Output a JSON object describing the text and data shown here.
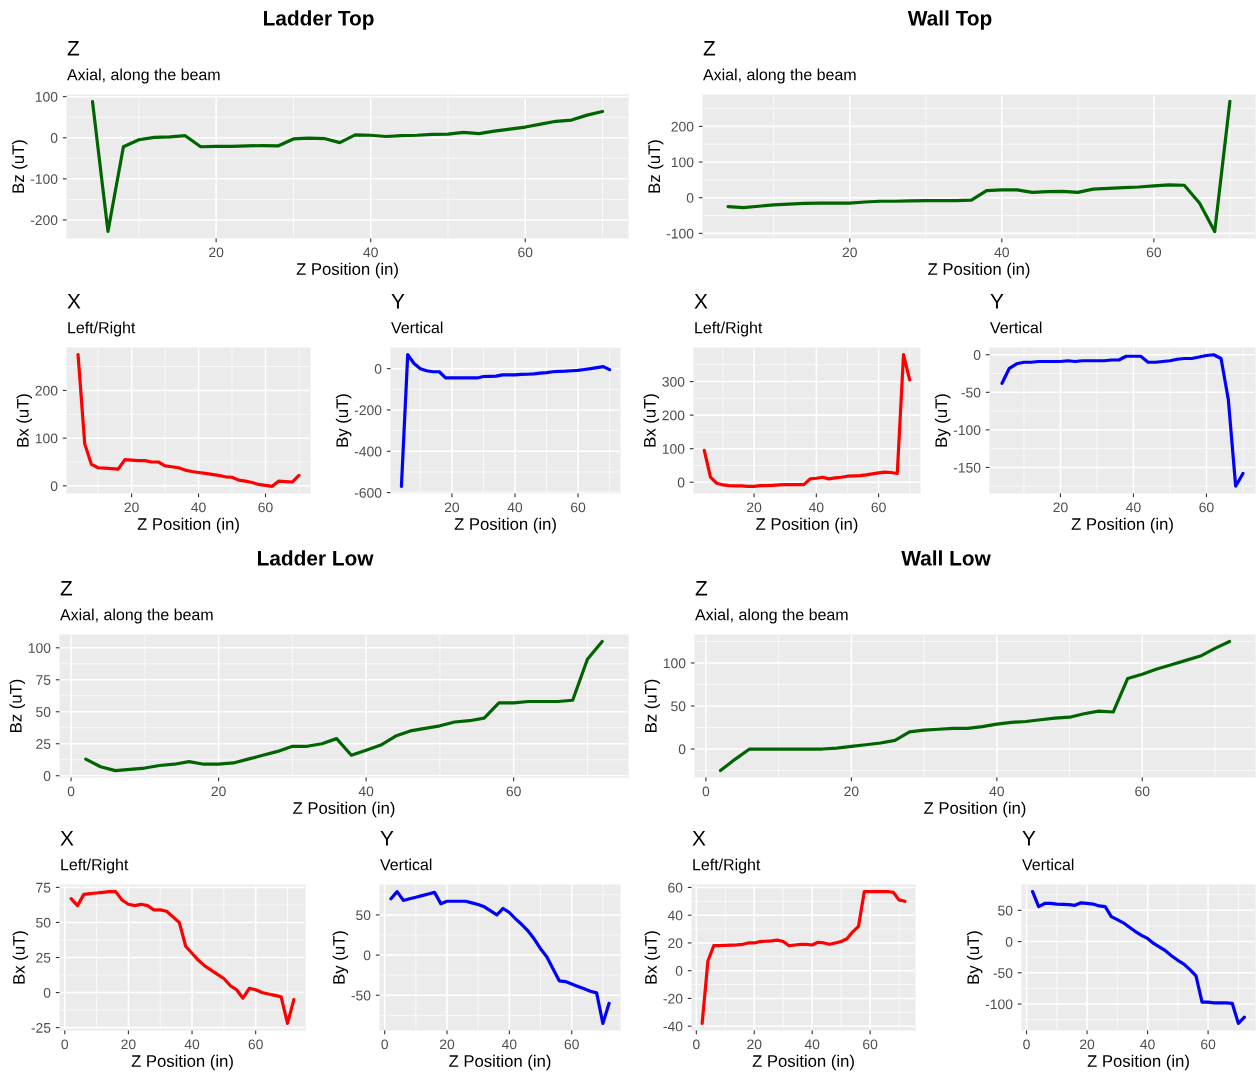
{
  "chart_data": [
    {
      "type": "line",
      "title": "Z",
      "subtitle": "Axial, along the beam",
      "annotations": [
        "Ladder Top"
      ],
      "xlabel": "Z Position (in)",
      "ylabel": "Bz (uT)",
      "xlim": [
        0.7,
        73.3
      ],
      "xticks": [
        20,
        40,
        60
      ],
      "ylim": [
        -244,
        104
      ],
      "yticks": [
        -200,
        -100,
        0,
        100
      ],
      "grid": true,
      "series": [
        {
          "color": "#006400",
          "x": [
            4,
            6,
            8,
            10,
            12,
            14,
            16,
            18,
            20,
            22,
            24,
            26,
            28,
            30,
            32,
            34,
            36,
            38,
            40,
            42,
            44,
            46,
            48,
            50,
            52,
            54,
            56,
            58,
            60,
            62,
            64,
            66,
            68,
            70
          ],
          "values": [
            88,
            -228,
            -22,
            -5,
            1,
            2,
            5,
            -22,
            -21,
            -21,
            -20,
            -19,
            -20,
            -3,
            -1,
            -2,
            -12,
            7,
            6,
            3,
            5,
            6,
            8,
            9,
            13,
            10,
            16,
            21,
            26,
            33,
            40,
            43,
            55,
            64
          ]
        }
      ]
    },
    {
      "type": "line",
      "title": "X",
      "subtitle": "Left/Right",
      "xlabel": "Z Position (in)",
      "ylabel": "Bx (uT)",
      "xlim": [
        0.7,
        73.3
      ],
      "xticks": [
        20,
        40,
        60
      ],
      "ylim": [
        -15,
        289
      ],
      "yticks": [
        0,
        100,
        200
      ],
      "grid": true,
      "series": [
        {
          "color": "#ff0000",
          "x": [
            4,
            6,
            8,
            10,
            12,
            14,
            16,
            18,
            20,
            22,
            24,
            26,
            28,
            30,
            32,
            34,
            36,
            38,
            40,
            42,
            44,
            46,
            48,
            50,
            52,
            54,
            56,
            58,
            60,
            62,
            64,
            66,
            68,
            70
          ],
          "values": [
            275,
            88,
            45,
            38,
            37,
            36,
            35,
            55,
            54,
            53,
            53,
            50,
            50,
            42,
            40,
            38,
            33,
            30,
            28,
            26,
            24,
            22,
            19,
            18,
            12,
            10,
            7,
            3,
            1,
            -1,
            10,
            9,
            8,
            22
          ]
        }
      ]
    },
    {
      "type": "line",
      "title": "Y",
      "subtitle": "Vertical",
      "xlabel": "Z Position (in)",
      "ylabel": "By (uT)",
      "xlim": [
        0.7,
        73.3
      ],
      "xticks": [
        20,
        40,
        60
      ],
      "ylim": [
        -602,
        100
      ],
      "yticks": [
        -600,
        -400,
        -200,
        0
      ],
      "grid": true,
      "series": [
        {
          "color": "#0000ff",
          "x": [
            4,
            6,
            8,
            10,
            12,
            14,
            16,
            18,
            20,
            22,
            24,
            26,
            28,
            30,
            32,
            34,
            36,
            38,
            40,
            42,
            44,
            46,
            48,
            50,
            52,
            54,
            56,
            58,
            60,
            62,
            64,
            66,
            68,
            70
          ],
          "values": [
            -570,
            68,
            25,
            0,
            -10,
            -15,
            -15,
            -45,
            -45,
            -45,
            -45,
            -45,
            -45,
            -38,
            -37,
            -36,
            -30,
            -30,
            -30,
            -28,
            -27,
            -25,
            -22,
            -19,
            -15,
            -13,
            -12,
            -10,
            -8,
            -4,
            0,
            5,
            10,
            -5
          ]
        }
      ]
    },
    {
      "type": "line",
      "title": "Z",
      "subtitle": "Axial, along the beam",
      "annotations": [
        "Wall Top"
      ],
      "xlabel": "Z Position (in)",
      "ylabel": "Bz (uT)",
      "xlim": [
        0.7,
        73.3
      ],
      "xticks": [
        20,
        40,
        60
      ],
      "ylim": [
        -113,
        288
      ],
      "yticks": [
        -100,
        0,
        100,
        200
      ],
      "grid": true,
      "series": [
        {
          "color": "#006400",
          "x": [
            4,
            6,
            8,
            10,
            12,
            14,
            16,
            18,
            20,
            22,
            24,
            26,
            28,
            30,
            32,
            34,
            36,
            38,
            40,
            42,
            44,
            46,
            48,
            50,
            52,
            54,
            56,
            58,
            60,
            62,
            64,
            66,
            68,
            70
          ],
          "values": [
            -25,
            -28,
            -24,
            -20,
            -18,
            -16,
            -15,
            -15,
            -15,
            -12,
            -10,
            -10,
            -9,
            -8,
            -8,
            -8,
            -7,
            20,
            22,
            22,
            15,
            17,
            18,
            15,
            24,
            26,
            28,
            30,
            33,
            36,
            35,
            -15,
            -95,
            270
          ]
        }
      ]
    },
    {
      "type": "line",
      "title": "X",
      "subtitle": "Left/Right",
      "xlabel": "Z Position (in)",
      "ylabel": "Bx (uT)",
      "xlim": [
        0.7,
        73.3
      ],
      "xticks": [
        20,
        40,
        60
      ],
      "ylim": [
        -32,
        400
      ],
      "yticks": [
        0,
        100,
        200,
        300
      ],
      "grid": true,
      "series": [
        {
          "color": "#ff0000",
          "x": [
            4,
            6,
            8,
            10,
            12,
            14,
            16,
            18,
            20,
            22,
            24,
            26,
            28,
            30,
            32,
            34,
            36,
            38,
            40,
            42,
            44,
            46,
            48,
            50,
            52,
            54,
            56,
            58,
            60,
            62,
            64,
            66,
            68,
            70
          ],
          "values": [
            95,
            15,
            -3,
            -8,
            -10,
            -11,
            -11,
            -12,
            -12,
            -10,
            -10,
            -9,
            -8,
            -7,
            -7,
            -7,
            -7,
            10,
            12,
            15,
            10,
            13,
            15,
            18,
            19,
            20,
            22,
            25,
            28,
            30,
            29,
            26,
            380,
            305
          ]
        }
      ]
    },
    {
      "type": "line",
      "title": "Y",
      "subtitle": "Vertical",
      "xlabel": "Z Position (in)",
      "ylabel": "By (uT)",
      "xlim": [
        0.7,
        73.3
      ],
      "xticks": [
        20,
        40,
        60
      ],
      "ylim": [
        -184,
        9
      ],
      "yticks": [
        -150,
        -100,
        -50,
        0
      ],
      "grid": true,
      "series": [
        {
          "color": "#0000ff",
          "x": [
            4,
            6,
            8,
            10,
            12,
            14,
            16,
            18,
            20,
            22,
            24,
            26,
            28,
            30,
            32,
            34,
            36,
            38,
            40,
            42,
            44,
            46,
            48,
            50,
            52,
            54,
            56,
            58,
            60,
            62,
            64,
            66,
            68,
            70
          ],
          "values": [
            -38,
            -18,
            -12,
            -10,
            -10,
            -9,
            -9,
            -9,
            -9,
            -8,
            -9,
            -8,
            -8,
            -8,
            -8,
            -7,
            -7,
            -2,
            -2,
            -2,
            -10,
            -10,
            -9,
            -8,
            -6,
            -5,
            -5,
            -3,
            -1,
            0,
            -5,
            -60,
            -175,
            -158
          ]
        }
      ]
    },
    {
      "type": "line",
      "title": "Z",
      "subtitle": "Axial, along the beam",
      "annotations": [
        "Ladder Low"
      ],
      "xlabel": "Z Position (in)",
      "ylabel": "Bz (uT)",
      "xlim": [
        -1.5,
        75.5
      ],
      "xticks": [
        0,
        20,
        40,
        60
      ],
      "ylim": [
        -1,
        110
      ],
      "yticks": [
        0,
        25,
        50,
        75,
        100
      ],
      "grid": true,
      "series": [
        {
          "color": "#006400",
          "x": [
            2,
            4,
            6,
            8,
            10,
            12,
            14,
            16,
            18,
            20,
            22,
            24,
            26,
            28,
            30,
            32,
            34,
            36,
            38,
            40,
            42,
            44,
            46,
            48,
            50,
            52,
            54,
            56,
            58,
            60,
            62,
            64,
            66,
            68,
            70,
            72
          ],
          "values": [
            13,
            7,
            4,
            5,
            6,
            8,
            9,
            11,
            9,
            9,
            10,
            13,
            16,
            19,
            23,
            23,
            25,
            29,
            16,
            20,
            24,
            31,
            35,
            37,
            39,
            42,
            43,
            45,
            57,
            57,
            58,
            58,
            58,
            59,
            91,
            105
          ]
        }
      ]
    },
    {
      "type": "line",
      "title": "X",
      "subtitle": "Left/Right",
      "xlabel": "Z Position (in)",
      "ylabel": "Bx (uT)",
      "xlim": [
        -1.5,
        75.5
      ],
      "xticks": [
        0,
        20,
        40,
        60
      ],
      "ylim": [
        -26.7,
        76.7
      ],
      "yticks": [
        -25,
        0,
        25,
        50,
        75
      ],
      "grid": true,
      "series": [
        {
          "color": "#ff0000",
          "x": [
            2,
            4,
            6,
            8,
            10,
            12,
            14,
            16,
            18,
            20,
            22,
            24,
            26,
            28,
            30,
            32,
            34,
            36,
            38,
            40,
            42,
            44,
            46,
            48,
            50,
            52,
            54,
            56,
            58,
            60,
            62,
            64,
            66,
            68,
            70,
            72
          ],
          "values": [
            67,
            62,
            70,
            70.5,
            71,
            71.5,
            72,
            72,
            66,
            63,
            62,
            63,
            62,
            59,
            59,
            58,
            54,
            50,
            33,
            28,
            23,
            19,
            16,
            13,
            10,
            5,
            2,
            -4,
            3,
            2,
            0,
            -1,
            -2,
            -3,
            -22,
            -5
          ]
        }
      ]
    },
    {
      "type": "line",
      "title": "Y",
      "subtitle": "Vertical",
      "xlabel": "Z Position (in)",
      "ylabel": "By (uT)",
      "xlim": [
        -1.5,
        75.5
      ],
      "xticks": [
        0,
        20,
        40,
        60
      ],
      "ylim": [
        -93.2,
        87.2
      ],
      "yticks": [
        -50,
        0,
        50
      ],
      "grid": true,
      "series": [
        {
          "color": "#0000ff",
          "x": [
            2,
            4,
            6,
            8,
            10,
            12,
            14,
            16,
            18,
            20,
            22,
            24,
            26,
            28,
            30,
            32,
            34,
            36,
            38,
            40,
            42,
            44,
            46,
            48,
            50,
            52,
            54,
            56,
            58,
            60,
            62,
            64,
            66,
            68,
            70,
            72
          ],
          "values": [
            70,
            79,
            68,
            70,
            72,
            74,
            76,
            78,
            64,
            67,
            67,
            67,
            67,
            65,
            63,
            60,
            55,
            50,
            58,
            53,
            45,
            38,
            30,
            20,
            8,
            -2,
            -17,
            -32,
            -33,
            -36,
            -39,
            -42,
            -45,
            -47,
            -85,
            -60
          ]
        }
      ]
    },
    {
      "type": "line",
      "title": "Z",
      "subtitle": "Axial, along the beam",
      "annotations": [
        "Wall Low"
      ],
      "xlabel": "Z Position (in)",
      "ylabel": "Bz (uT)",
      "xlim": [
        -1.5,
        75.5
      ],
      "xticks": [
        0,
        20,
        40,
        60
      ],
      "ylim": [
        -32.5,
        132.5
      ],
      "yticks": [
        0,
        50,
        100
      ],
      "grid": true,
      "series": [
        {
          "color": "#006400",
          "x": [
            2,
            4,
            6,
            8,
            10,
            12,
            14,
            16,
            18,
            20,
            22,
            24,
            26,
            28,
            30,
            32,
            34,
            36,
            38,
            40,
            42,
            44,
            46,
            48,
            50,
            52,
            54,
            56,
            58,
            60,
            62,
            64,
            66,
            68,
            70,
            72
          ],
          "values": [
            -25,
            -12,
            0,
            0,
            0,
            0,
            0,
            0,
            1,
            3,
            5,
            7,
            10,
            20,
            22,
            23,
            24,
            24,
            26,
            29,
            31,
            32,
            34,
            36,
            37,
            41,
            44,
            43,
            82,
            87,
            93,
            98,
            103,
            108,
            117,
            125
          ]
        }
      ]
    },
    {
      "type": "line",
      "title": "X",
      "subtitle": "Left/Right",
      "xlabel": "Z Position (in)",
      "ylabel": "Bx (uT)",
      "xlim": [
        -1.5,
        75.5
      ],
      "xticks": [
        0,
        20,
        40,
        60
      ],
      "ylim": [
        -42.75,
        61.75
      ],
      "yticks": [
        -40,
        -20,
        0,
        20,
        40,
        60
      ],
      "grid": true,
      "series": [
        {
          "color": "#ff0000",
          "x": [
            2,
            4,
            6,
            8,
            10,
            12,
            14,
            16,
            18,
            20,
            22,
            24,
            26,
            28,
            30,
            32,
            34,
            36,
            38,
            40,
            42,
            44,
            46,
            48,
            50,
            52,
            54,
            56,
            58,
            60,
            62,
            64,
            66,
            68,
            70,
            72
          ],
          "values": [
            -38,
            7,
            18,
            18,
            18.2,
            18.4,
            18.6,
            19,
            20,
            20,
            21,
            21.2,
            21.5,
            22,
            21,
            18,
            18.5,
            19,
            19,
            18.5,
            20.5,
            20,
            19,
            20,
            21,
            23,
            28,
            32,
            57,
            57,
            57,
            57,
            57,
            56.5,
            51,
            50
          ]
        }
      ]
    },
    {
      "type": "line",
      "title": "Y",
      "subtitle": "Vertical",
      "xlabel": "Z Position (in)",
      "ylabel": "By (uT)",
      "xlim": [
        -1.5,
        75.5
      ],
      "xticks": [
        0,
        20,
        40,
        60
      ],
      "ylim": [
        -141.55,
        90.55
      ],
      "yticks": [
        -100,
        -50,
        0,
        50
      ],
      "grid": true,
      "series": [
        {
          "color": "#0000ff",
          "x": [
            2,
            4,
            6,
            8,
            10,
            12,
            14,
            16,
            18,
            20,
            22,
            24,
            26,
            28,
            30,
            32,
            34,
            36,
            38,
            40,
            42,
            44,
            46,
            48,
            50,
            52,
            54,
            56,
            58,
            60,
            62,
            64,
            66,
            68,
            70,
            72
          ],
          "values": [
            80,
            56,
            61,
            61,
            60,
            59.5,
            59,
            58,
            62,
            61,
            60,
            57,
            56,
            40,
            35,
            30,
            23,
            16,
            10,
            5,
            -3,
            -9,
            -15,
            -23,
            -30,
            -36,
            -45,
            -55,
            -97,
            -97,
            -98,
            -98,
            -98,
            -99,
            -131,
            -121
          ]
        }
      ]
    }
  ]
}
